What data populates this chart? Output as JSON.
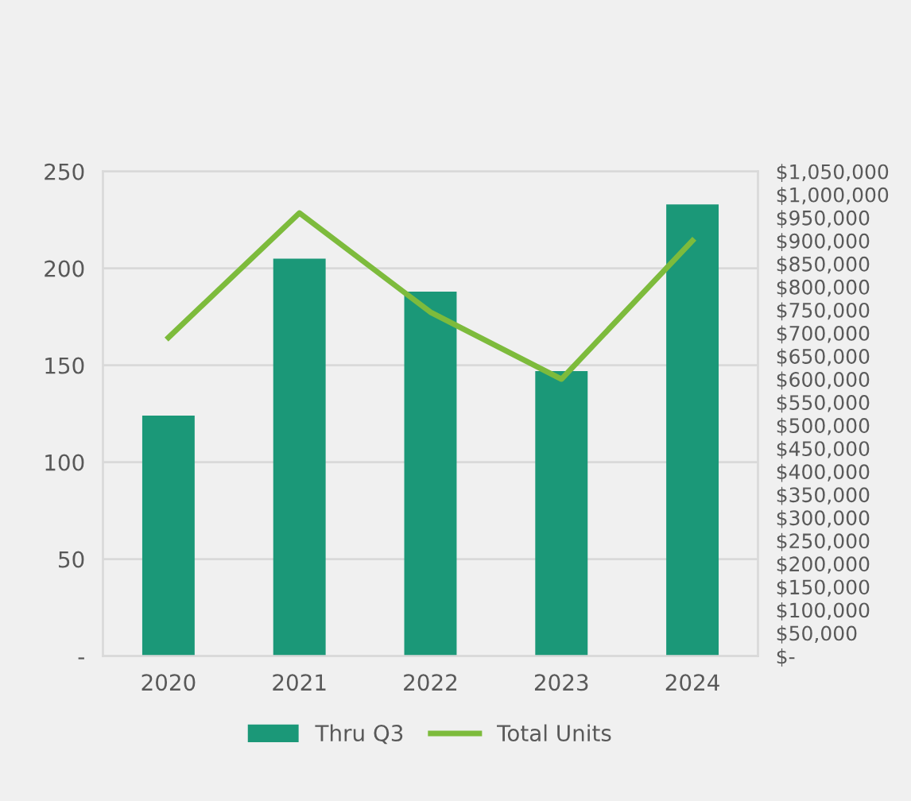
{
  "chart_data": {
    "type": "bar",
    "categories": [
      "2020",
      "2021",
      "2022",
      "2023",
      "2024"
    ],
    "series": [
      {
        "name": "Thru Q3",
        "color": "#1b9878",
        "values": [
          124,
          205,
          188,
          147,
          233
        ]
      },
      {
        "name": "Total Units",
        "type": "line",
        "axis": "y2",
        "color": "#7dbb3c",
        "values": [
          690000,
          960000,
          745000,
          600000,
          900000
        ]
      }
    ],
    "ylim": [
      0,
      250
    ],
    "yticks": [
      {
        "value": 0,
        "label": "-"
      },
      50,
      100,
      150,
      200,
      250
    ],
    "y2lim": [
      0,
      1050000
    ],
    "y2ticks": [
      {
        "value": 0,
        "label": "$-"
      },
      {
        "value": 50000,
        "label": "$50,000"
      },
      {
        "value": 100000,
        "label": "$100,000"
      },
      {
        "value": 150000,
        "label": "$150,000"
      },
      {
        "value": 200000,
        "label": "$200,000"
      },
      {
        "value": 250000,
        "label": "$250,000"
      },
      {
        "value": 300000,
        "label": "$300,000"
      },
      {
        "value": 350000,
        "label": "$350,000"
      },
      {
        "value": 400000,
        "label": "$400,000"
      },
      {
        "value": 450000,
        "label": "$450,000"
      },
      {
        "value": 500000,
        "label": "$500,000"
      },
      {
        "value": 550000,
        "label": "$550,000"
      },
      {
        "value": 600000,
        "label": "$600,000"
      },
      {
        "value": 650000,
        "label": "$650,000"
      },
      {
        "value": 700000,
        "label": "$700,000"
      },
      {
        "value": 750000,
        "label": "$750,000"
      },
      {
        "value": 800000,
        "label": "$800,000"
      },
      {
        "value": 850000,
        "label": "$850,000"
      },
      {
        "value": 900000,
        "label": "$900,000"
      },
      {
        "value": 950000,
        "label": "$950,000"
      },
      {
        "value": 1000000,
        "label": "$1,000,000"
      },
      {
        "value": 1050000,
        "label": "$1,050,000"
      }
    ],
    "grid": "y",
    "legend": "bottom",
    "marker": "none",
    "line_style": "solid"
  }
}
